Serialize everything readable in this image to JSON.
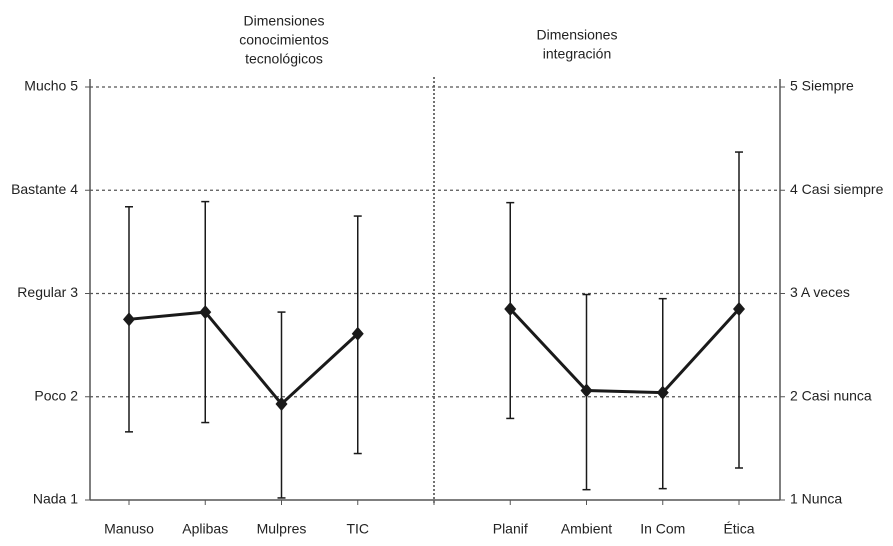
{
  "chart_data": {
    "type": "line",
    "panel_titles": [
      [
        "Dimensiones",
        "conocimientos",
        "tecnológicos"
      ],
      [
        "Dimensiones",
        "integración"
      ]
    ],
    "categories": [
      "Manuso",
      "Aplibas",
      "Mulpres",
      "TIC",
      null,
      "Planif",
      "Ambient",
      "In Com",
      "Ética"
    ],
    "series": [
      {
        "color": "#1a1a1a",
        "values": [
          2.75,
          2.82,
          1.93,
          2.61,
          null,
          2.85,
          2.06,
          2.04,
          2.85
        ],
        "lower": [
          1.66,
          1.75,
          1.02,
          1.45,
          null,
          1.79,
          1.1,
          1.11,
          1.31
        ],
        "upper": [
          3.84,
          3.89,
          2.82,
          3.75,
          null,
          3.88,
          2.99,
          2.95,
          4.37
        ]
      }
    ],
    "ylim": [
      1,
      5
    ],
    "yticks": [
      {
        "value": 1,
        "label": "Nada 1"
      },
      {
        "value": 2,
        "label": "Poco 2"
      },
      {
        "value": 3,
        "label": "Regular 3"
      },
      {
        "value": 4,
        "label": "Bastante 4"
      },
      {
        "value": 5,
        "label": "Mucho 5"
      }
    ],
    "y2lim": [
      1,
      5
    ],
    "y2ticks": [
      {
        "value": 1,
        "label": "1 Nunca"
      },
      {
        "value": 2,
        "label": "2 Casi nunca"
      },
      {
        "value": 3,
        "label": "3 A veces"
      },
      {
        "value": 4,
        "label": "4 Casi siempre"
      },
      {
        "value": 5,
        "label": "5 Siempre"
      }
    ],
    "grid": true
  }
}
